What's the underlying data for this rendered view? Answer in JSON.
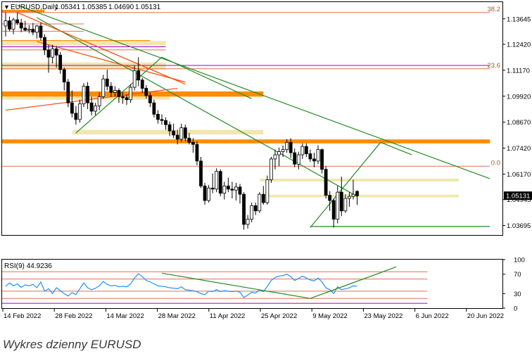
{
  "caption": "Wykres dzienny EURUSD",
  "chart_data": {
    "type": "candlestick",
    "symbol": "EURUSD,Daily",
    "ohlc": {
      "open": "1.05341",
      "high": "1.05385",
      "low": "1.04690",
      "close": "1.05131"
    },
    "current_price": "1.05131",
    "price_axis": {
      "ticks": [
        "1.13645",
        "1.12420",
        "1.11170",
        "1.09920",
        "1.08670",
        "1.07420",
        "1.06170",
        "1.04945",
        "1.03695"
      ],
      "ylim": [
        1.0324,
        1.1445
      ]
    },
    "fib_labels": [
      {
        "text": "38.2",
        "price": 1.1395
      },
      {
        "text": "23.6",
        "price": 1.1124
      },
      {
        "text": "0.0",
        "price": 1.0655
      }
    ],
    "x_ticks": [
      "14 Feb 2022",
      "28 Feb 2022",
      "14 Mar 2022",
      "28 Mar 2022",
      "11 Apr 2022",
      "25 Apr 2022",
      "9 May 2022",
      "23 May 2022",
      "6 Jun 2022",
      "20 Jun 2022"
    ],
    "candles": [
      {
        "o": 1.133,
        "h": 1.1395,
        "l": 1.128,
        "c": 1.1355
      },
      {
        "o": 1.1355,
        "h": 1.1375,
        "l": 1.1305,
        "c": 1.1315
      },
      {
        "o": 1.1315,
        "h": 1.137,
        "l": 1.129,
        "c": 1.136
      },
      {
        "o": 1.136,
        "h": 1.1395,
        "l": 1.1335,
        "c": 1.1345
      },
      {
        "o": 1.1345,
        "h": 1.1365,
        "l": 1.13,
        "c": 1.132
      },
      {
        "o": 1.132,
        "h": 1.1355,
        "l": 1.1305,
        "c": 1.131
      },
      {
        "o": 1.131,
        "h": 1.1335,
        "l": 1.1295,
        "c": 1.1315
      },
      {
        "o": 1.1315,
        "h": 1.1345,
        "l": 1.1285,
        "c": 1.13
      },
      {
        "o": 1.13,
        "h": 1.1335,
        "l": 1.127,
        "c": 1.133
      },
      {
        "o": 1.133,
        "h": 1.1345,
        "l": 1.126,
        "c": 1.1275
      },
      {
        "o": 1.1275,
        "h": 1.129,
        "l": 1.119,
        "c": 1.1215
      },
      {
        "o": 1.1215,
        "h": 1.124,
        "l": 1.1105,
        "c": 1.118
      },
      {
        "o": 1.118,
        "h": 1.124,
        "l": 1.115,
        "c": 1.122
      },
      {
        "o": 1.122,
        "h": 1.1235,
        "l": 1.113,
        "c": 1.119
      },
      {
        "o": 1.119,
        "h": 1.1205,
        "l": 1.11,
        "c": 1.112
      },
      {
        "o": 1.112,
        "h": 1.113,
        "l": 1.102,
        "c": 1.106
      },
      {
        "o": 1.106,
        "h": 1.1075,
        "l": 1.094,
        "c": 1.096
      },
      {
        "o": 1.096,
        "h": 1.102,
        "l": 1.089,
        "c": 1.091
      },
      {
        "o": 1.091,
        "h": 1.0945,
        "l": 1.0855,
        "c": 1.088
      },
      {
        "o": 1.088,
        "h": 1.0975,
        "l": 1.0865,
        "c": 1.0955
      },
      {
        "o": 1.0955,
        "h": 1.1055,
        "l": 1.094,
        "c": 1.104
      },
      {
        "o": 1.104,
        "h": 1.106,
        "l": 1.093,
        "c": 1.096
      },
      {
        "o": 1.096,
        "h": 1.099,
        "l": 1.09,
        "c": 1.092
      },
      {
        "o": 1.092,
        "h": 1.096,
        "l": 1.09,
        "c": 1.0945
      },
      {
        "o": 1.0945,
        "h": 1.101,
        "l": 1.0925,
        "c": 1.099
      },
      {
        "o": 1.099,
        "h": 1.1095,
        "l": 1.098,
        "c": 1.1075
      },
      {
        "o": 1.1075,
        "h": 1.112,
        "l": 1.102,
        "c": 1.104
      },
      {
        "o": 1.104,
        "h": 1.106,
        "l": 1.099,
        "c": 1.101
      },
      {
        "o": 1.101,
        "h": 1.104,
        "l": 1.099,
        "c": 1.102
      },
      {
        "o": 1.102,
        "h": 1.103,
        "l": 1.096,
        "c": 1.099
      },
      {
        "o": 1.099,
        "h": 1.101,
        "l": 1.0955,
        "c": 1.0985
      },
      {
        "o": 1.0985,
        "h": 1.1,
        "l": 1.095,
        "c": 1.0975
      },
      {
        "o": 1.0975,
        "h": 1.105,
        "l": 1.096,
        "c": 1.1035
      },
      {
        "o": 1.1035,
        "h": 1.114,
        "l": 1.102,
        "c": 1.1115
      },
      {
        "o": 1.1115,
        "h": 1.118,
        "l": 1.104,
        "c": 1.107
      },
      {
        "o": 1.107,
        "h": 1.108,
        "l": 1.101,
        "c": 1.103
      },
      {
        "o": 1.103,
        "h": 1.1045,
        "l": 1.098,
        "c": 1.0995
      },
      {
        "o": 1.0995,
        "h": 1.101,
        "l": 1.094,
        "c": 1.096
      },
      {
        "o": 1.096,
        "h": 1.0975,
        "l": 1.089,
        "c": 1.0905
      },
      {
        "o": 1.0905,
        "h": 1.0925,
        "l": 1.086,
        "c": 1.088
      },
      {
        "o": 1.088,
        "h": 1.0905,
        "l": 1.0855,
        "c": 1.0875
      },
      {
        "o": 1.0875,
        "h": 1.089,
        "l": 1.083,
        "c": 1.0855
      },
      {
        "o": 1.0855,
        "h": 1.087,
        "l": 1.08,
        "c": 1.0825
      },
      {
        "o": 1.0825,
        "h": 1.086,
        "l": 1.079,
        "c": 1.0805
      },
      {
        "o": 1.0805,
        "h": 1.083,
        "l": 1.076,
        "c": 1.0785
      },
      {
        "o": 1.0785,
        "h": 1.086,
        "l": 1.077,
        "c": 1.084
      },
      {
        "o": 1.084,
        "h": 1.0855,
        "l": 1.0775,
        "c": 1.079
      },
      {
        "o": 1.079,
        "h": 1.0815,
        "l": 1.076,
        "c": 1.077
      },
      {
        "o": 1.077,
        "h": 1.079,
        "l": 1.072,
        "c": 1.076
      },
      {
        "o": 1.076,
        "h": 1.0775,
        "l": 1.066,
        "c": 1.068
      },
      {
        "o": 1.068,
        "h": 1.07,
        "l": 1.055,
        "c": 1.056
      },
      {
        "o": 1.056,
        "h": 1.0575,
        "l": 1.047,
        "c": 1.049
      },
      {
        "o": 1.049,
        "h": 1.0565,
        "l": 1.048,
        "c": 1.055
      },
      {
        "o": 1.055,
        "h": 1.062,
        "l": 1.0525,
        "c": 1.0545
      },
      {
        "o": 1.0545,
        "h": 1.0645,
        "l": 1.053,
        "c": 1.063
      },
      {
        "o": 1.063,
        "h": 1.064,
        "l": 1.051,
        "c": 1.0525
      },
      {
        "o": 1.0525,
        "h": 1.058,
        "l": 1.0495,
        "c": 1.056
      },
      {
        "o": 1.056,
        "h": 1.06,
        "l": 1.053,
        "c": 1.0545
      },
      {
        "o": 1.0545,
        "h": 1.058,
        "l": 1.05,
        "c": 1.054
      },
      {
        "o": 1.054,
        "h": 1.0575,
        "l": 1.049,
        "c": 1.0555
      },
      {
        "o": 1.0555,
        "h": 1.057,
        "l": 1.0475,
        "c": 1.052
      },
      {
        "o": 1.052,
        "h": 1.053,
        "l": 1.035,
        "c": 1.0375
      },
      {
        "o": 1.0375,
        "h": 1.042,
        "l": 1.0355,
        "c": 1.04
      },
      {
        "o": 1.04,
        "h": 1.048,
        "l": 1.0385,
        "c": 1.0465
      },
      {
        "o": 1.0465,
        "h": 1.048,
        "l": 1.042,
        "c": 1.044
      },
      {
        "o": 1.044,
        "h": 1.053,
        "l": 1.043,
        "c": 1.052
      },
      {
        "o": 1.052,
        "h": 1.056,
        "l": 1.047,
        "c": 1.048
      },
      {
        "o": 1.048,
        "h": 1.061,
        "l": 1.047,
        "c": 1.059
      },
      {
        "o": 1.059,
        "h": 1.07,
        "l": 1.0575,
        "c": 1.069
      },
      {
        "o": 1.069,
        "h": 1.0735,
        "l": 1.064,
        "c": 1.071
      },
      {
        "o": 1.071,
        "h": 1.0745,
        "l": 1.0655,
        "c": 1.0725
      },
      {
        "o": 1.0725,
        "h": 1.0755,
        "l": 1.07,
        "c": 1.0735
      },
      {
        "o": 1.0735,
        "h": 1.0785,
        "l": 1.072,
        "c": 1.077
      },
      {
        "o": 1.077,
        "h": 1.079,
        "l": 1.0695,
        "c": 1.072
      },
      {
        "o": 1.072,
        "h": 1.074,
        "l": 1.065,
        "c": 1.0665
      },
      {
        "o": 1.0665,
        "h": 1.0725,
        "l": 1.064,
        "c": 1.071
      },
      {
        "o": 1.071,
        "h": 1.0765,
        "l": 1.069,
        "c": 1.075
      },
      {
        "o": 1.075,
        "h": 1.0765,
        "l": 1.07,
        "c": 1.0715
      },
      {
        "o": 1.0715,
        "h": 1.0735,
        "l": 1.0675,
        "c": 1.069
      },
      {
        "o": 1.069,
        "h": 1.072,
        "l": 1.065,
        "c": 1.068
      },
      {
        "o": 1.068,
        "h": 1.0755,
        "l": 1.0665,
        "c": 1.0735
      },
      {
        "o": 1.0735,
        "h": 1.074,
        "l": 1.062,
        "c": 1.064
      },
      {
        "o": 1.064,
        "h": 1.0655,
        "l": 1.05,
        "c": 1.0515
      },
      {
        "o": 1.0515,
        "h": 1.0535,
        "l": 1.044,
        "c": 1.049
      },
      {
        "o": 1.049,
        "h": 1.05,
        "l": 1.036,
        "c": 1.04
      },
      {
        "o": 1.04,
        "h": 1.056,
        "l": 1.038,
        "c": 1.053
      },
      {
        "o": 1.053,
        "h": 1.0605,
        "l": 1.0415,
        "c": 1.044
      },
      {
        "o": 1.044,
        "h": 1.052,
        "l": 1.043,
        "c": 1.05
      },
      {
        "o": 1.05,
        "h": 1.053,
        "l": 1.046,
        "c": 1.051
      },
      {
        "o": 1.051,
        "h": 1.059,
        "l": 1.0495,
        "c": 1.052
      },
      {
        "o": 1.0534,
        "h": 1.0539,
        "l": 1.0469,
        "c": 1.0513
      }
    ],
    "zones": [
      {
        "y1": 1.1408,
        "y2": 1.1395,
        "x1": 0,
        "x2": 10,
        "color": "#ff8c00"
      },
      {
        "y1": 1.1262,
        "y2": 1.125,
        "x1": 0,
        "x2": 37,
        "color": "#ff8c00"
      },
      {
        "y1": 1.1258,
        "y2": 1.1236,
        "x1": 0,
        "x2": 41,
        "color": "#f2e6b0"
      },
      {
        "y1": 1.1155,
        "y2": 1.112,
        "x1": 0,
        "x2": 41,
        "color": "#f2e6b0"
      },
      {
        "y1": 1.1015,
        "y2": 1.099,
        "x1": 0,
        "x2": 66,
        "color": "#ff8c00"
      },
      {
        "y1": 1.099,
        "y2": 1.0975,
        "x1": 0,
        "x2": 42,
        "color": "#f2e6b0"
      },
      {
        "y1": 1.083,
        "y2": 1.0808,
        "x1": 18,
        "x2": 66,
        "color": "#f2e6b0"
      },
      {
        "y1": 1.0784,
        "y2": 1.0765,
        "x1": 0,
        "x2": 124,
        "color": "#ff8c00"
      },
      {
        "y1": 1.0595,
        "y2": 1.0582,
        "x1": 66,
        "x2": 116,
        "color": "#f2e6b0"
      },
      {
        "y1": 1.0518,
        "y2": 1.0505,
        "x1": 66,
        "x2": 116,
        "color": "#f2e6b0"
      }
    ],
    "hlines": [
      {
        "y": 1.1395,
        "color": "#e07050",
        "x1": 0,
        "x2": 124
      },
      {
        "y": 1.134,
        "color": "#e07050",
        "x1": 0,
        "x2": 20
      },
      {
        "y": 1.1305,
        "color": "#e07050",
        "x1": 0,
        "x2": 20
      },
      {
        "y": 1.123,
        "color": "#9900cc",
        "x1": 0,
        "x2": 41
      },
      {
        "y": 1.1215,
        "color": "#e07050",
        "x1": 0,
        "x2": 41
      },
      {
        "y": 1.114,
        "color": "#9900cc",
        "x1": 0,
        "x2": 124
      },
      {
        "y": 1.1124,
        "color": "#e07050",
        "x1": 0,
        "x2": 124
      },
      {
        "y": 1.0655,
        "color": "#e07050",
        "x1": 0,
        "x2": 124
      }
    ],
    "trendlines": [
      {
        "x1": 3,
        "y1": 1.143,
        "x2": 124,
        "y2": 1.0595,
        "color": "#228b22"
      },
      {
        "x1": 18,
        "y1": 1.0815,
        "x2": 40,
        "y2": 1.118,
        "color": "#228b22"
      },
      {
        "x1": 40,
        "y1": 1.118,
        "x2": 63,
        "y2": 1.098,
        "color": "#228b22"
      },
      {
        "x1": 78,
        "y1": 1.036,
        "x2": 96,
        "y2": 1.077,
        "color": "#228b22"
      },
      {
        "x1": 96,
        "y1": 1.077,
        "x2": 104,
        "y2": 1.071,
        "color": "#228b22"
      },
      {
        "x1": 78,
        "y1": 1.0365,
        "x2": 124,
        "y2": 1.0365,
        "color": "#228b22"
      },
      {
        "x1": 8,
        "y1": 1.137,
        "x2": 90,
        "y2": 1.051,
        "color": "#228b22"
      },
      {
        "x1": 3,
        "y1": 1.1395,
        "x2": 46,
        "y2": 1.105,
        "color": "#ff4500"
      },
      {
        "x1": 0,
        "y1": 1.0925,
        "x2": 44,
        "y2": 1.103,
        "color": "#ff4500"
      },
      {
        "x1": 8,
        "y1": 1.1255,
        "x2": 46,
        "y2": 1.106,
        "color": "#ff4500"
      }
    ],
    "rsi": {
      "label": "RSI(9) 44.9236",
      "ylim": [
        0,
        100
      ],
      "ticks": [
        "100",
        "70",
        "30",
        "0"
      ],
      "levels": [
        {
          "v": 75,
          "color": "#e07050"
        },
        {
          "v": 60,
          "color": "#e07050"
        },
        {
          "v": 35,
          "color": "#e07050"
        },
        {
          "v": 20,
          "color": "#e07050"
        },
        {
          "v": 10,
          "color": "#9900cc"
        }
      ],
      "values": [
        45,
        52,
        46,
        50,
        43,
        48,
        46,
        49,
        42,
        54,
        35,
        40,
        30,
        42,
        36,
        30,
        25,
        32,
        28,
        40,
        52,
        42,
        38,
        41,
        46,
        55,
        49,
        46,
        47,
        44,
        45,
        44,
        50,
        62,
        71,
        65,
        57,
        54,
        50,
        46,
        45,
        44,
        42,
        41,
        40,
        44,
        38,
        37,
        36,
        34,
        30,
        28,
        35,
        34,
        38,
        34,
        36,
        35,
        34,
        35,
        33,
        22,
        27,
        33,
        31,
        38,
        34,
        45,
        57,
        63,
        66,
        67,
        70,
        65,
        57,
        61,
        66,
        62,
        58,
        56,
        62,
        54,
        42,
        38,
        30,
        44,
        38,
        40,
        42,
        46,
        45
      ],
      "trendlines": [
        {
          "x1": 40,
          "y1": 72,
          "x2": 78,
          "y2": 20,
          "color": "#228b22"
        },
        {
          "x1": 78,
          "y1": 20,
          "x2": 100,
          "y2": 85,
          "color": "#228b22"
        }
      ]
    }
  }
}
